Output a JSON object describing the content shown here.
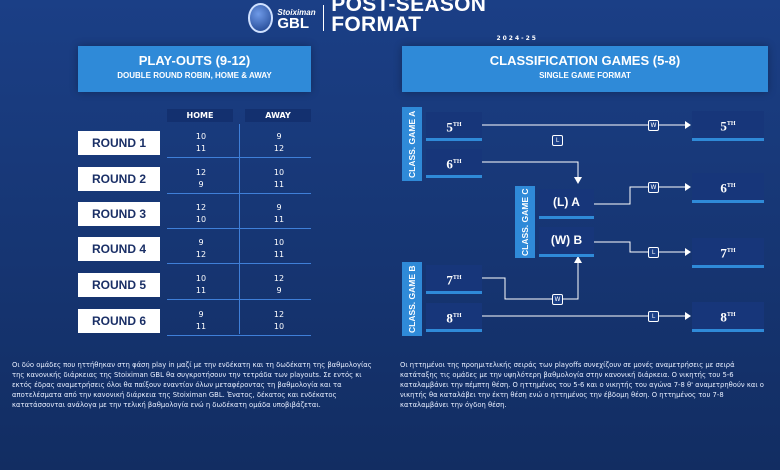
{
  "header": {
    "brand_top": "Stoiximan",
    "brand_bottom": "GBL",
    "title": "POST-SEASON FORMAT",
    "season": "2024-25"
  },
  "playouts": {
    "title": "PLAY-OUTS (9-12)",
    "subtitle": "DOUBLE ROUND ROBIN, HOME & AWAY",
    "col_home": "HOME",
    "col_away": "AWAY",
    "rounds": [
      {
        "label": "ROUND 1",
        "home": [
          "10",
          "11"
        ],
        "away": [
          "9",
          "12"
        ]
      },
      {
        "label": "ROUND 2",
        "home": [
          "12",
          "9"
        ],
        "away": [
          "10",
          "11"
        ]
      },
      {
        "label": "ROUND 3",
        "home": [
          "12",
          "10"
        ],
        "away": [
          "9",
          "11"
        ]
      },
      {
        "label": "ROUND 4",
        "home": [
          "9",
          "12"
        ],
        "away": [
          "10",
          "11"
        ]
      },
      {
        "label": "ROUND 5",
        "home": [
          "10",
          "11"
        ],
        "away": [
          "12",
          "9"
        ]
      },
      {
        "label": "ROUND 6",
        "home": [
          "9",
          "11"
        ],
        "away": [
          "12",
          "10"
        ]
      }
    ],
    "description": "Οι δύο ομάδες που ηττήθηκαν στη φάση play in μαζί με την ενδέκατη και τη δωδέκατη της βαθμολογίας της κανονικής διάρκειας της Stoiximan GBL θα συγκροτήσουν την τετράδα των playouts. Σε εντός κι εκτός έδρας αναμετρήσεις όλοι θα παίξουν εναντίον όλων μεταφέροντας τη βαθμολογία και τα αποτελέσματα από την κανονική διάρκεια της Stoiximan GBL. Ένατος, δέκατος και ενδέκατος κατατάσσονται ανάλογα με την τελική βαθμολογία ενώ η δωδέκατη ομάδα υποβιβάζεται."
  },
  "classification": {
    "title": "CLASSIFICATION GAMES (5-8)",
    "subtitle": "SINGLE GAME FORMAT",
    "game_a_label": "CLASS. GAME A",
    "game_b_label": "CLASS. GAME B",
    "game_c_label": "CLASS. GAME C",
    "game_a": [
      {
        "n": "5",
        "s": "TH"
      },
      {
        "n": "6",
        "s": "TH"
      }
    ],
    "game_b": [
      {
        "n": "7",
        "s": "TH"
      },
      {
        "n": "8",
        "s": "TH"
      }
    ],
    "game_c": [
      "(L) A",
      "(W) B"
    ],
    "results": [
      {
        "n": "5",
        "s": "TH"
      },
      {
        "n": "6",
        "s": "TH"
      },
      {
        "n": "7",
        "s": "TH"
      },
      {
        "n": "8",
        "s": "TH"
      }
    ],
    "badge_w": "W",
    "badge_l": "L",
    "description": "Οι ηττημένοι της προημιτελικής σειράς των playoffs συνεχίζουν σε μονές αναμετρήσεις με σειρά κατάταξης τις ομάδες με την υψηλότερη βαθμολογία στην κανονική διάρκεια. Ο νικητής του 5-6 καταλαμβάνει την πέμπτη θέση. Ο ηττημένος του 5-6 και ο νικητής του αγώνα 7-8 θ' αναμετρηθούν και ο νικητής θα καταλάβει την έκτη θέση ενώ ο ηττημένος την έβδομη θέση. Ο ηττημένος του 7-8 καταλαμβάνει την όγδοη θέση."
  }
}
